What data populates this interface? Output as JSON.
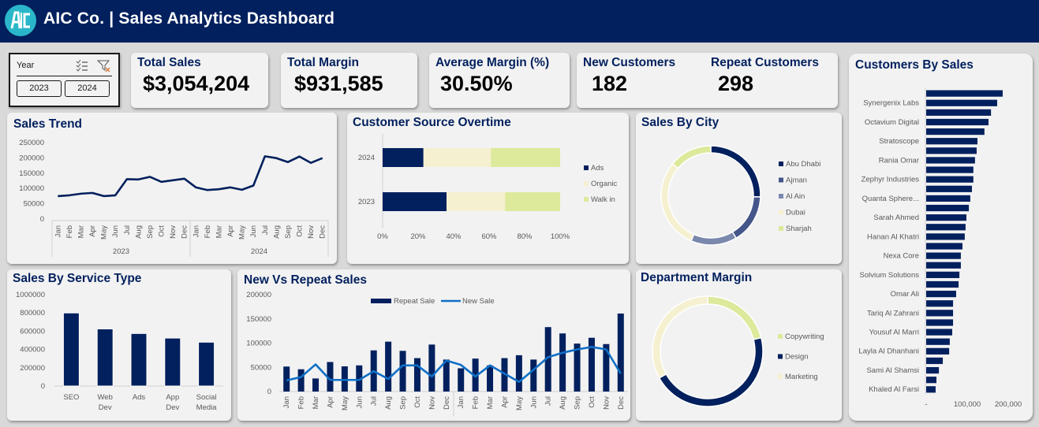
{
  "header": {
    "logo_icon": "aic-logo-icon",
    "title": "AIC Co. | Sales Analytics Dashboard"
  },
  "slicer": {
    "label": "Year",
    "multiselect_icon": "multi-select-icon",
    "clear_filter_icon": "clear-filter-icon",
    "options": [
      "2023",
      "2024"
    ]
  },
  "kpis": {
    "total_sales": {
      "label": "Total Sales",
      "value": "$3,054,204"
    },
    "total_margin": {
      "label": "Total Margin",
      "value": "$931,585"
    },
    "average_margin": {
      "label": "Average Margin (%)",
      "value": "30.50%"
    },
    "new_customers": {
      "label": "New Customers",
      "value": "182"
    },
    "repeat_customers": {
      "label": "Repeat Customers",
      "value": "298"
    }
  },
  "colors": {
    "navy": "#02205e",
    "line_blue": "#0f6fc6",
    "cream": "#f5f0d0",
    "light_green": "#dde99b",
    "slate": "#44568a",
    "periwinkle": "#7b88ad"
  },
  "chart_data": [
    {
      "id": "sales_trend",
      "type": "line",
      "title": "Sales Trend",
      "ylim": [
        0,
        250000
      ],
      "yticks": [
        "0",
        "50000",
        "100000",
        "150000",
        "200000",
        "250000"
      ],
      "categories": [
        "Jan",
        "Feb",
        "Mar",
        "Apr",
        "May",
        "Jun",
        "Jul",
        "Aug",
        "Sep",
        "Oct",
        "Nov",
        "Dec",
        "Jan",
        "Feb",
        "Mar",
        "Apr",
        "May",
        "Jun",
        "Jul",
        "Aug",
        "Sep",
        "Oct",
        "Nov",
        "Dec"
      ],
      "groups": [
        {
          "label": "2023",
          "count": 12
        },
        {
          "label": "2024",
          "count": 12
        }
      ],
      "series": [
        {
          "name": "Sales",
          "values": [
            75000,
            77600,
            82800,
            85400,
            75000,
            77600,
            130200,
            129400,
            138000,
            121600,
            126800,
            132000,
            103500,
            94800,
            97400,
            103500,
            95700,
            109500,
            205200,
            199200,
            186300,
            204400,
            183700,
            199200
          ]
        }
      ],
      "grid": false
    },
    {
      "id": "customer_source",
      "type": "bar",
      "orientation": "horizontal-stacked-100",
      "title": "Customer Source Overtime",
      "categories": [
        "2024",
        "2023"
      ],
      "xticks": [
        "0%",
        "20%",
        "40%",
        "60%",
        "80%",
        "100%"
      ],
      "series": [
        {
          "name": "Ads",
          "values": [
            23,
            36
          ]
        },
        {
          "name": "Organic",
          "values": [
            38,
            33
          ]
        },
        {
          "name": "Walk in",
          "values": [
            39,
            31
          ]
        }
      ],
      "legend": "right"
    },
    {
      "id": "sales_by_city",
      "type": "pie",
      "variant": "donut",
      "title": "Sales By City",
      "labels": [
        "Abu Dhabi",
        "Ajman",
        "Al Ain",
        "Dubai",
        "Sharjah"
      ],
      "values": [
        25.5,
        16,
        15,
        29.5,
        14
      ],
      "legend": "right"
    },
    {
      "id": "sales_by_service",
      "type": "bar",
      "title": "Sales By Service Type",
      "categories": [
        "SEO",
        "Web Dev",
        "Ads",
        "App Dev",
        "Social Media"
      ],
      "values": [
        800000,
        625000,
        575000,
        525000,
        480000
      ],
      "ylim": [
        0,
        1000000
      ],
      "yticks": [
        "0",
        "200000",
        "400000",
        "600000",
        "800000",
        "1000000"
      ]
    },
    {
      "id": "new_vs_repeat",
      "type": "bar",
      "title": "New Vs Repeat Sales",
      "categories": [
        "Jan",
        "Feb",
        "Mar",
        "Apr",
        "May",
        "Jun",
        "Jul",
        "Aug",
        "Sep",
        "Oct",
        "Nov",
        "Dec",
        "Jan",
        "Feb",
        "Mar",
        "Apr",
        "May",
        "Jun",
        "Jul",
        "Aug",
        "Sep",
        "Oct",
        "Nov",
        "Dec"
      ],
      "ylim": [
        0,
        200000
      ],
      "yticks": [
        "0",
        "50000",
        "100000",
        "150000",
        "200000"
      ],
      "series": [
        {
          "name": "Repeat Sale",
          "kind": "bar",
          "values": [
            51600,
            46000,
            27000,
            61000,
            52000,
            54000,
            85000,
            103000,
            84000,
            69000,
            97000,
            66000,
            48000,
            68000,
            54000,
            69000,
            75000,
            66000,
            133000,
            120000,
            99000,
            111000,
            98000,
            161000
          ]
        },
        {
          "name": "New Sale",
          "kind": "line",
          "values": [
            23000,
            30000,
            56000,
            24000,
            24000,
            24000,
            42000,
            26000,
            54000,
            54000,
            31000,
            64000,
            55000,
            31000,
            54000,
            37000,
            20000,
            45000,
            71000,
            80000,
            87000,
            92000,
            87000,
            37000
          ]
        }
      ],
      "legend": "top"
    },
    {
      "id": "department_margin",
      "type": "pie",
      "variant": "donut",
      "title": "Department Margin",
      "labels": [
        "Copywriting",
        "Design",
        "Marketing"
      ],
      "values": [
        21,
        46,
        33
      ],
      "legend": "right"
    },
    {
      "id": "customers_by_sales",
      "type": "bar",
      "orientation": "horizontal",
      "title": "Customers By Sales",
      "xlim": [
        0,
        230000
      ],
      "xticks": [
        "-",
        "100,000",
        "200,000"
      ],
      "labels": [
        "",
        "Synergenix Labs",
        "",
        "Octavium Digital",
        "",
        "Stratoscope",
        "",
        "Rania Omar",
        "",
        "Zephyr Industries",
        "",
        "Quanta Sphere...",
        "",
        "Sarah Ahmed",
        "",
        "Hanan Al Khatri",
        "",
        "Nexa Core",
        "",
        "Solvium Solutions",
        "",
        "Omar Ali",
        "",
        "Tariq Al Zahrani",
        "",
        "Yousuf Al Marri",
        "",
        "Layla Al Dhanhani",
        "",
        "Sami Al Shamsi",
        "",
        "Khaled Al Farsi"
      ],
      "values": [
        186500,
        173000,
        158000,
        152000,
        142000,
        125000,
        123000,
        119000,
        115000,
        115000,
        111500,
        107500,
        104000,
        98000,
        96000,
        94000,
        88500,
        84500,
        84500,
        81000,
        79000,
        73000,
        65500,
        65500,
        65500,
        63500,
        57500,
        56000,
        40500,
        31000,
        25000,
        23000
      ]
    }
  ]
}
